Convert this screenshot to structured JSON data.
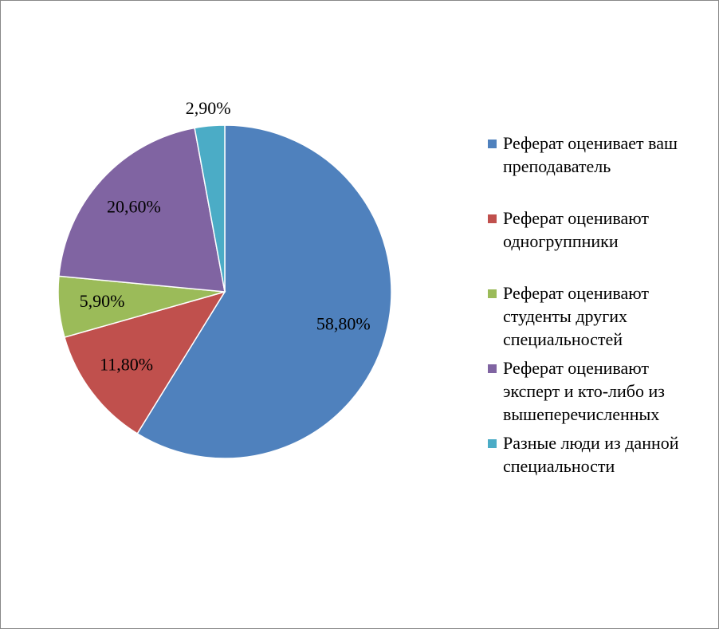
{
  "chart_data": {
    "type": "pie",
    "categories": [
      "Реферат оценивает ваш преподаватель",
      "Реферат оценивают одногруппники",
      "Реферат оценивают студенты других специальностей",
      "Реферат оценивают эксперт и кто-либо из вышеперечисленных",
      "Разные люди из данной специальности"
    ],
    "values": [
      58.8,
      11.8,
      5.9,
      20.6,
      2.9
    ],
    "value_labels": [
      "58,80%",
      "11,80%",
      "5,90%",
      "20,60%",
      "2,90%"
    ],
    "colors": [
      "#4f81bd",
      "#c0504d",
      "#9bbb59",
      "#8064a2",
      "#4bacc6"
    ],
    "legend": "right"
  }
}
